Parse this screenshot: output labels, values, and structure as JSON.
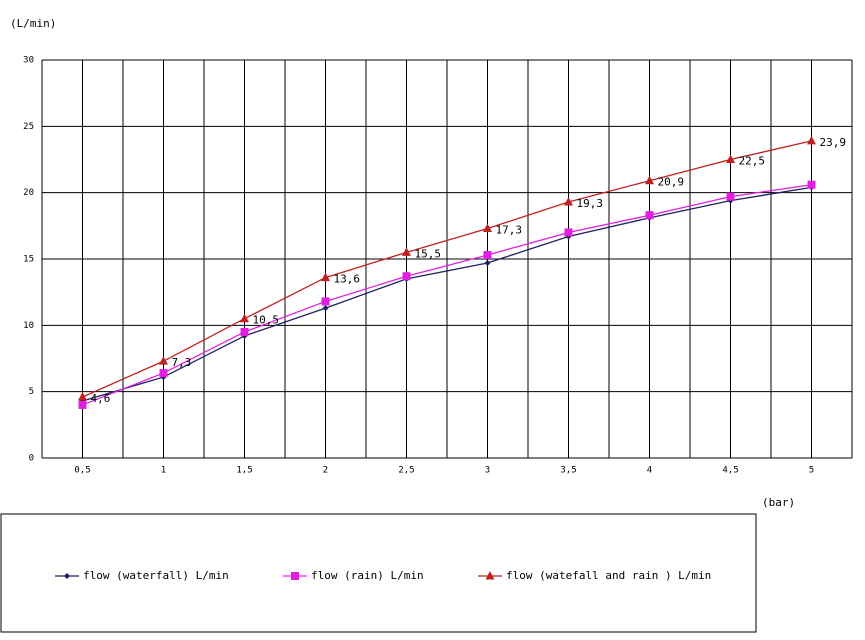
{
  "chart_data": {
    "type": "line",
    "y_label": "(L/min)",
    "x_label": "(bar)",
    "categories": [
      "0,5",
      "1",
      "1,5",
      "2",
      "2,5",
      "3",
      "3,5",
      "4",
      "4,5",
      "5"
    ],
    "series": [
      {
        "name": "flow (waterfall) L/min",
        "color": "#1f2060",
        "marker": "diamond",
        "values": [
          4.3,
          6.1,
          9.2,
          11.3,
          13.5,
          14.7,
          16.7,
          18.1,
          19.4,
          20.4
        ]
      },
      {
        "name": "flow (rain) L/min",
        "color": "#e020e0",
        "marker": "square",
        "values": [
          4.0,
          6.4,
          9.5,
          11.8,
          13.7,
          15.3,
          17.0,
          18.3,
          19.7,
          20.6
        ]
      },
      {
        "name": "flow (watefall and rain ) L/min",
        "color": "#c02020",
        "marker": "triangle",
        "values": [
          4.6,
          7.3,
          10.5,
          13.6,
          15.5,
          17.3,
          19.3,
          20.9,
          22.5,
          23.9
        ],
        "value_labels": [
          "4,6",
          "7,3",
          "10,5",
          "13,6",
          "15,5",
          "17,3",
          "19,3",
          "20,9",
          "22,5",
          "23,9"
        ]
      }
    ],
    "ylim": [
      0,
      30
    ],
    "yticks": [
      0,
      5,
      10,
      15,
      20,
      25,
      30
    ],
    "grid": true,
    "legend": "bottom"
  }
}
